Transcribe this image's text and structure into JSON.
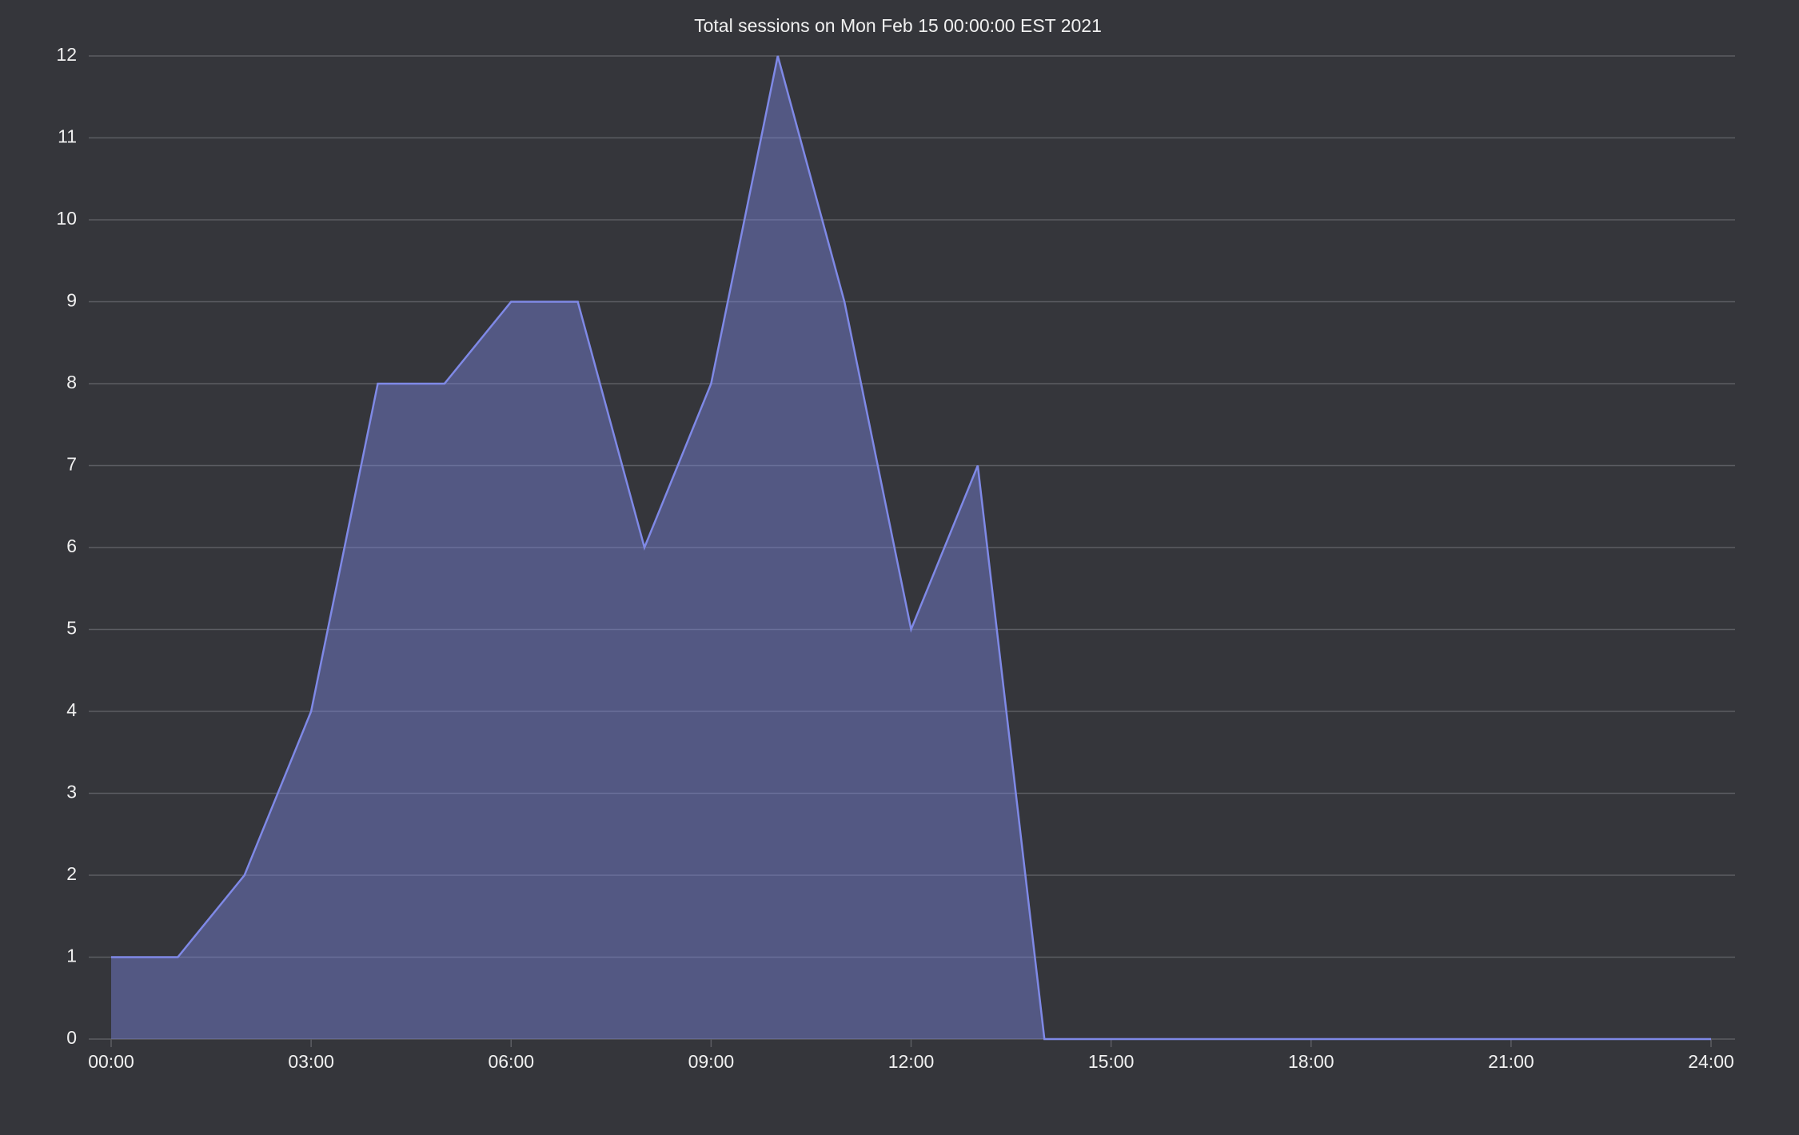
{
  "chart_data": {
    "type": "area",
    "title": "Total sessions on Mon Feb 15 00:00:00 EST 2021",
    "x": [
      0,
      1,
      2,
      3,
      4,
      5,
      6,
      7,
      8,
      9,
      10,
      11,
      12,
      13,
      14,
      15,
      16,
      17,
      18,
      19,
      20,
      21,
      22,
      23,
      24
    ],
    "series": [
      {
        "color": "#7f89e6",
        "values": [
          1,
          1,
          2,
          4,
          8,
          8,
          9,
          9,
          6,
          8,
          12,
          9,
          5,
          7,
          0,
          0,
          0,
          0,
          0,
          0,
          0,
          0,
          0,
          0,
          0
        ]
      }
    ],
    "xlim": [
      0,
      24
    ],
    "xticks": [
      {
        "value": 0,
        "label": "00:00"
      },
      {
        "value": 3,
        "label": "03:00"
      },
      {
        "value": 6,
        "label": "06:00"
      },
      {
        "value": 9,
        "label": "09:00"
      },
      {
        "value": 12,
        "label": "12:00"
      },
      {
        "value": 15,
        "label": "15:00"
      },
      {
        "value": 18,
        "label": "18:00"
      },
      {
        "value": 21,
        "label": "21:00"
      },
      {
        "value": 24,
        "label": "24:00"
      }
    ],
    "ylim": [
      0,
      12
    ],
    "yticks": [
      0,
      1,
      2,
      3,
      4,
      5,
      6,
      7,
      8,
      9,
      10,
      11,
      12
    ],
    "grid": true
  }
}
